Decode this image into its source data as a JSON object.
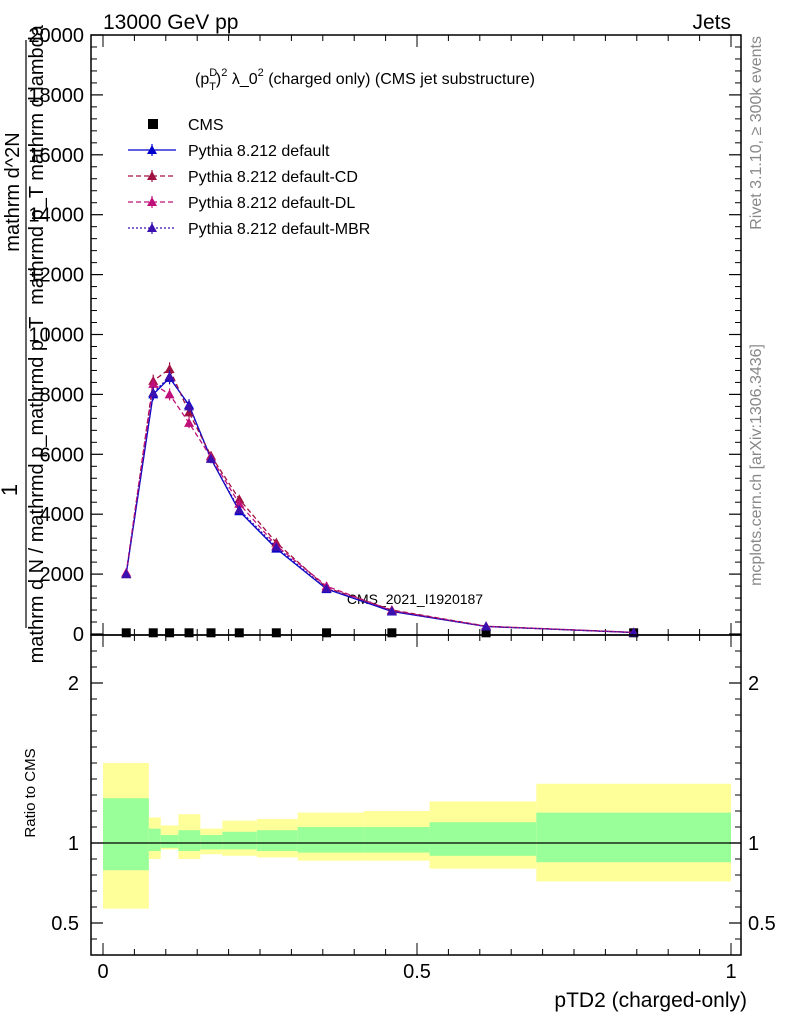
{
  "header": {
    "left": "13000 GeV pp",
    "right": "Jets"
  },
  "side_labels": {
    "top": "Rivet 3.1.10, ≥ 300k events",
    "bottom": "mcplots.cern.ch [arXiv:1306.3436]"
  },
  "watermark": "CMS_2021_I1920187",
  "chart_data": [
    {
      "type": "line",
      "title_parts": {
        "p": "(p",
        "sup1": "D",
        "sub": "T",
        "close": ")",
        "sup2": "2",
        "rest": " λ_0",
        "sup3": "2",
        "tail": " (charged only) (CMS jet substructure)"
      },
      "ylabel_parts": {
        "one": "1",
        "den": "mathrm d N / mathrmd p_mathrmd p_T",
        "num": "mathrm d^2N",
        "den2": "mathrmd p_T mathrm d lambda"
      },
      "xlim": [
        0,
        1
      ],
      "ylim": [
        0,
        20000
      ],
      "y_ticks": [
        {
          "value": 0,
          "label": "0"
        },
        {
          "value": 2000,
          "label": "2000"
        },
        {
          "value": 4000,
          "label": "4000"
        },
        {
          "value": 6000,
          "label": "6000"
        },
        {
          "value": 8000,
          "label": "8000"
        },
        {
          "value": 10000,
          "label": "10000"
        },
        {
          "value": 12000,
          "label": "12000"
        },
        {
          "value": 14000,
          "label": "14000"
        },
        {
          "value": 16000,
          "label": "16000"
        },
        {
          "value": 18000,
          "label": "18000"
        },
        {
          "value": 20000,
          "label": "20000"
        }
      ],
      "legend": [
        {
          "name": "CMS",
          "color": "#000000",
          "style": "marker"
        },
        {
          "name": "Pythia 8.212 default",
          "color": "#0000cc",
          "style": "solid"
        },
        {
          "name": "Pythia 8.212 default-CD",
          "color": "#a01040",
          "style": "dashed"
        },
        {
          "name": "Pythia 8.212 default-DL",
          "color": "#c0107a",
          "style": "dashed"
        },
        {
          "name": "Pythia 8.212 default-MBR",
          "color": "#3a10b0",
          "style": "dotted"
        }
      ],
      "series": [
        {
          "name": "CMS",
          "color": "#000000",
          "x": [
            0.037,
            0.08,
            0.106,
            0.137,
            0.172,
            0.217,
            0.276,
            0.356,
            0.46,
            0.61,
            0.845
          ],
          "y": [
            40,
            40,
            40,
            40,
            40,
            40,
            40,
            40,
            40,
            40,
            40
          ]
        },
        {
          "name": "Pythia 8.212 default",
          "color": "#0000cc",
          "x": [
            0.037,
            0.08,
            0.106,
            0.137,
            0.172,
            0.217,
            0.276,
            0.356,
            0.46,
            0.61,
            0.845
          ],
          "y": [
            2000,
            8000,
            8550,
            7650,
            5850,
            4100,
            2850,
            1500,
            750,
            250,
            50
          ]
        },
        {
          "name": "Pythia 8.212 default-CD",
          "color": "#a01040",
          "x": [
            0.037,
            0.08,
            0.106,
            0.137,
            0.172,
            0.217,
            0.276,
            0.356,
            0.46,
            0.61,
            0.845
          ],
          "y": [
            2000,
            8450,
            8850,
            7400,
            5950,
            4500,
            3050,
            1550,
            800,
            260,
            55
          ]
        },
        {
          "name": "Pythia 8.212 default-DL",
          "color": "#c0107a",
          "x": [
            0.037,
            0.08,
            0.106,
            0.137,
            0.172,
            0.217,
            0.276,
            0.356,
            0.46,
            0.61,
            0.845
          ],
          "y": [
            2050,
            8350,
            8000,
            7050,
            5900,
            4350,
            2950,
            1600,
            780,
            255,
            52
          ]
        },
        {
          "name": "Pythia 8.212 default-MBR",
          "color": "#3a10b0",
          "x": [
            0.037,
            0.08,
            0.106,
            0.137,
            0.172,
            0.217,
            0.276,
            0.356,
            0.46,
            0.61,
            0.845
          ],
          "y": [
            2000,
            8050,
            8600,
            7600,
            5850,
            4150,
            2900,
            1520,
            760,
            252,
            51
          ]
        }
      ]
    },
    {
      "type": "area",
      "ylabel": "Ratio to CMS",
      "xlabel": "pTD2 (charged-only)",
      "xlim": [
        0,
        1
      ],
      "ylim": [
        0.3,
        2.3
      ],
      "x_ticks": [
        {
          "value": 0,
          "label": "0"
        },
        {
          "value": 0.5,
          "label": "0.5"
        },
        {
          "value": 1,
          "label": "1"
        }
      ],
      "y_ticks": [
        {
          "value": 0.5,
          "label": "0.5"
        },
        {
          "value": 1,
          "label": "1"
        },
        {
          "value": 2,
          "label": "2"
        }
      ],
      "bins": [
        0,
        0.073,
        0.092,
        0.12,
        0.155,
        0.19,
        0.245,
        0.31,
        0.415,
        0.52,
        0.69,
        1.0
      ],
      "band_yellow_lo": [
        0.59,
        0.9,
        0.96,
        0.9,
        0.93,
        0.92,
        0.91,
        0.89,
        0.89,
        0.84,
        0.76
      ],
      "band_yellow_hi": [
        1.5,
        1.16,
        1.11,
        1.18,
        1.09,
        1.14,
        1.15,
        1.19,
        1.2,
        1.26,
        1.37
      ],
      "band_green_lo": [
        0.83,
        0.95,
        0.97,
        0.95,
        0.96,
        0.96,
        0.95,
        0.94,
        0.94,
        0.92,
        0.88
      ],
      "band_green_hi": [
        1.28,
        1.09,
        1.05,
        1.08,
        1.05,
        1.07,
        1.08,
        1.1,
        1.1,
        1.13,
        1.19
      ],
      "band_colors": {
        "yellow": "#ffff99",
        "green": "#99ff99"
      },
      "reference": 1
    }
  ]
}
